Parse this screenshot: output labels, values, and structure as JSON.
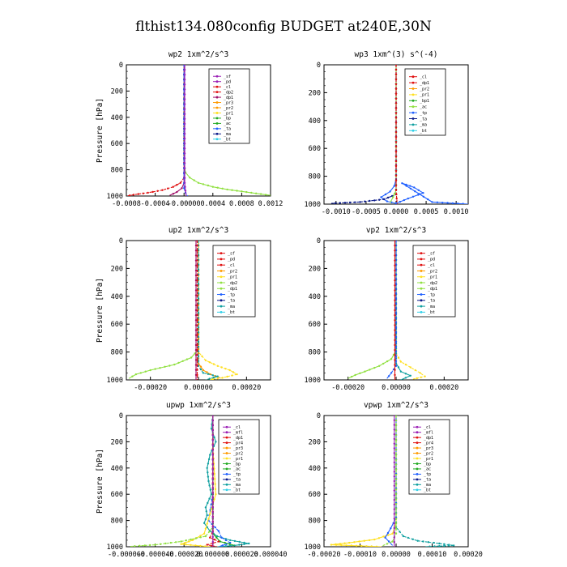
{
  "figure_title": "flthist134.080config  BUDGET at240E,30N",
  "colors": {
    "purple": "#9b1fb5",
    "dark_magenta": "#a0106a",
    "red": "#e01010",
    "orange": "#ff9a00",
    "yellow": "#ffe020",
    "light_green": "#90e040",
    "green": "#22aa22",
    "blue": "#2060ff",
    "navy": "#0a1a8a",
    "teal": "#10a0a0",
    "cyan": "#30d0e8"
  },
  "chart_data": [
    {
      "id": "wp2",
      "type": "line",
      "title": "wp2   1xm^2/s^3",
      "ylabel": "Pressure [hPa]",
      "xlim": [
        -0.0008,
        0.0012
      ],
      "ylim": [
        1000,
        0
      ],
      "xticks": [
        -0.0008,
        -0.0004,
        0,
        0.0004,
        0.0008,
        0.0012
      ],
      "xticklabels": [
        "-0.0008",
        "-0.0004",
        "-0.00000",
        "0.0004",
        "0.0008",
        "0.0012"
      ],
      "yticks": [
        0,
        200,
        400,
        600,
        800,
        1000
      ],
      "legend": [
        {
          "name": "_sf",
          "color": "purple"
        },
        {
          "name": "_pd",
          "color": "purple"
        },
        {
          "name": "_cl",
          "color": "red"
        },
        {
          "name": "_dp2",
          "color": "red"
        },
        {
          "name": "_dp1",
          "color": "dark_magenta"
        },
        {
          "name": "_pr3",
          "color": "orange"
        },
        {
          "name": "_pr2",
          "color": "orange"
        },
        {
          "name": "_pr1",
          "color": "yellow"
        },
        {
          "name": "_bp",
          "color": "green"
        },
        {
          "name": "_ac",
          "color": "green"
        },
        {
          "name": "_ta",
          "color": "blue"
        },
        {
          "name": "_ma",
          "color": "navy"
        },
        {
          "name": "_bt",
          "color": "cyan"
        }
      ],
      "series": [
        {
          "color": "light_green",
          "x": [
            0,
            0,
            2e-05,
            8e-05,
            0.0002,
            0.0004,
            0.0006,
            0.0008,
            0.001,
            0.0012
          ],
          "y": [
            0,
            760,
            820,
            860,
            900,
            930,
            950,
            965,
            980,
            995
          ]
        },
        {
          "color": "red",
          "x": [
            0,
            0,
            -5e-05,
            -0.00015,
            -0.0003,
            -0.0005,
            -0.0007,
            -0.0008
          ],
          "y": [
            0,
            860,
            900,
            930,
            955,
            975,
            990,
            1000
          ]
        },
        {
          "color": "dark_magenta",
          "x": [
            0,
            0,
            -3e-05,
            -0.0001,
            -0.0002
          ],
          "y": [
            0,
            900,
            940,
            970,
            995
          ]
        },
        {
          "color": "blue",
          "x": [
            0,
            0,
            2e-05,
            5e-05
          ],
          "y": [
            0,
            940,
            975,
            1000
          ]
        },
        {
          "color": "purple",
          "x": [
            1e-05,
            1e-05,
            2e-05,
            3e-05
          ],
          "y": [
            0,
            900,
            960,
            1000
          ]
        }
      ]
    },
    {
      "id": "wp3",
      "type": "line",
      "title": "wp3   1xm^(3) s^(-4)",
      "ylabel": "",
      "xlim": [
        -0.0012,
        0.0012
      ],
      "ylim": [
        1000,
        0
      ],
      "xticks": [
        -0.001,
        -0.0005,
        0,
        0.0005,
        0.001
      ],
      "xticklabels": [
        "-0.0010",
        "-0.0005",
        "0.0000",
        "0.0005",
        "0.0010"
      ],
      "yticks": [
        0,
        200,
        400,
        600,
        800,
        1000
      ],
      "legend": [
        {
          "name": "_cl",
          "color": "red"
        },
        {
          "name": "_dp1",
          "color": "red"
        },
        {
          "name": "_pr2",
          "color": "orange"
        },
        {
          "name": "_pr1",
          "color": "yellow"
        },
        {
          "name": "_bp1",
          "color": "green"
        },
        {
          "name": "_ac",
          "color": "light_green"
        },
        {
          "name": "_tp",
          "color": "blue"
        },
        {
          "name": "_ta",
          "color": "navy"
        },
        {
          "name": "_ma",
          "color": "teal"
        },
        {
          "name": "_bt",
          "color": "cyan"
        }
      ],
      "series": [
        {
          "color": "blue",
          "x": [
            0,
            0,
            -3e-05,
            -0.0001,
            -0.00025,
            -0.00015,
            0,
            0.0002,
            0.00045,
            0.0003,
            0.0001,
            0.0006,
            0.0012
          ],
          "y": [
            0,
            820,
            870,
            910,
            950,
            980,
            995,
            960,
            920,
            880,
            850,
            985,
            1000
          ]
        },
        {
          "color": "navy",
          "x": [
            0,
            0,
            -0.0002,
            -0.0006,
            -0.0011
          ],
          "y": [
            0,
            930,
            965,
            985,
            995
          ]
        },
        {
          "color": "light_green",
          "x": [
            0,
            0,
            -5e-05,
            -0.0001
          ],
          "y": [
            0,
            900,
            950,
            990
          ]
        },
        {
          "color": "red",
          "x": [
            0,
            0,
            1e-05,
            2e-05
          ],
          "y": [
            0,
            900,
            960,
            1000
          ]
        }
      ]
    },
    {
      "id": "up2",
      "type": "line",
      "title": "up2   1xm^2/s^3",
      "ylabel": "Pressure [hPa]",
      "xlim": [
        -0.0003,
        0.0003
      ],
      "ylim": [
        1000,
        0
      ],
      "xticks": [
        -0.0002,
        0,
        0.0002
      ],
      "xticklabels": [
        "-0.00020",
        "0.00000",
        "0.00020"
      ],
      "yticks": [
        0,
        200,
        400,
        600,
        800,
        1000
      ],
      "legend": [
        {
          "name": "_sf",
          "color": "red"
        },
        {
          "name": "_pd",
          "color": "red"
        },
        {
          "name": "_cl",
          "color": "red"
        },
        {
          "name": "_pr2",
          "color": "orange"
        },
        {
          "name": "_pr1",
          "color": "yellow"
        },
        {
          "name": "_dp2",
          "color": "light_green"
        },
        {
          "name": "_dp1",
          "color": "light_green"
        },
        {
          "name": "_tp",
          "color": "blue"
        },
        {
          "name": "_ta",
          "color": "navy"
        },
        {
          "name": "_ma",
          "color": "teal"
        },
        {
          "name": "_bt",
          "color": "cyan"
        }
      ],
      "series": [
        {
          "color": "light_green",
          "x": [
            0,
            0,
            -3e-05,
            -0.0001,
            -0.0002,
            -0.00026,
            -0.00029
          ],
          "y": [
            0,
            780,
            840,
            890,
            930,
            960,
            990
          ]
        },
        {
          "color": "yellow",
          "x": [
            0,
            0,
            3e-05,
            8e-05,
            0.00013,
            0.00016,
            0.0001,
            4e-05
          ],
          "y": [
            0,
            800,
            860,
            900,
            930,
            960,
            985,
            1000
          ]
        },
        {
          "color": "orange",
          "x": [
            0,
            0,
            2e-05,
            5e-05,
            9e-05
          ],
          "y": [
            0,
            880,
            930,
            960,
            985
          ]
        },
        {
          "color": "teal",
          "x": [
            0,
            0,
            2e-05,
            8e-05,
            3e-05
          ],
          "y": [
            0,
            900,
            950,
            975,
            1000
          ]
        },
        {
          "color": "dark_magenta",
          "x": [
            -1e-05,
            -1e-05,
            -1e-05
          ],
          "y": [
            0,
            500,
            1000
          ]
        },
        {
          "color": "red",
          "x": [
            -5e-06,
            -5e-06,
            -5e-06
          ],
          "y": [
            0,
            500,
            1000
          ]
        }
      ]
    },
    {
      "id": "vp2",
      "type": "line",
      "title": "vp2   1xm^2/s^3",
      "ylabel": "",
      "xlim": [
        -0.0003,
        0.0003
      ],
      "ylim": [
        1000,
        0
      ],
      "xticks": [
        -0.0002,
        0,
        0.0002
      ],
      "xticklabels": [
        "-0.00020",
        "0.00000",
        "0.00020"
      ],
      "yticks": [
        0,
        200,
        400,
        600,
        800,
        1000
      ],
      "legend": [
        {
          "name": "_sf",
          "color": "red"
        },
        {
          "name": "_pd",
          "color": "red"
        },
        {
          "name": "_cl",
          "color": "red"
        },
        {
          "name": "_pr2",
          "color": "orange"
        },
        {
          "name": "_pr1",
          "color": "yellow"
        },
        {
          "name": "_dp2",
          "color": "light_green"
        },
        {
          "name": "_dp1",
          "color": "light_green"
        },
        {
          "name": "_tp",
          "color": "blue"
        },
        {
          "name": "_ta",
          "color": "navy"
        },
        {
          "name": "_ma",
          "color": "teal"
        },
        {
          "name": "_bt",
          "color": "cyan"
        }
      ],
      "series": [
        {
          "color": "light_green",
          "x": [
            0,
            0,
            -2e-05,
            -7e-05,
            -0.00013,
            -0.00017,
            -0.0002
          ],
          "y": [
            0,
            790,
            850,
            900,
            940,
            965,
            990
          ]
        },
        {
          "color": "yellow",
          "x": [
            0,
            0,
            2e-05,
            6e-05,
            0.0001,
            0.00012,
            7e-05
          ],
          "y": [
            0,
            810,
            870,
            910,
            950,
            975,
            995
          ]
        },
        {
          "color": "teal",
          "x": [
            0,
            0,
            2e-05,
            6e-05,
            2e-05
          ],
          "y": [
            0,
            880,
            940,
            970,
            1000
          ]
        },
        {
          "color": "blue",
          "x": [
            0,
            0,
            -2e-05,
            -4e-05
          ],
          "y": [
            0,
            900,
            950,
            995
          ]
        },
        {
          "color": "red",
          "x": [
            -5e-06,
            -5e-06,
            -5e-06
          ],
          "y": [
            0,
            500,
            1000
          ]
        }
      ]
    },
    {
      "id": "upwp",
      "type": "line",
      "title": "upwp   1xm^2/s^3",
      "ylabel": "Pressure [hPa]",
      "xlim": [
        -6e-05,
        4e-05
      ],
      "ylim": [
        1000,
        0
      ],
      "xticks": [
        -6e-05,
        -4e-05,
        -2e-05,
        0,
        2e-05,
        4e-05
      ],
      "xticklabels": [
        "-0.000060",
        "-0.000040",
        "-0.000020",
        "0.000000",
        "0.000020",
        "0.000040"
      ],
      "yticks": [
        0,
        200,
        400,
        600,
        800,
        1000
      ],
      "legend": [
        {
          "name": "_cl",
          "color": "purple"
        },
        {
          "name": "_mfl",
          "color": "purple"
        },
        {
          "name": "_dp1",
          "color": "red"
        },
        {
          "name": "_pr4",
          "color": "red"
        },
        {
          "name": "_pr3",
          "color": "orange"
        },
        {
          "name": "_pr2",
          "color": "orange"
        },
        {
          "name": "_pr1",
          "color": "yellow"
        },
        {
          "name": "_bp",
          "color": "green"
        },
        {
          "name": "_ac",
          "color": "green"
        },
        {
          "name": "_tp",
          "color": "blue"
        },
        {
          "name": "_ta",
          "color": "navy"
        },
        {
          "name": "_ma",
          "color": "teal"
        },
        {
          "name": "_bt",
          "color": "cyan"
        }
      ],
      "series": [
        {
          "color": "teal",
          "x": [
            0,
            -1e-06,
            2e-06,
            -2e-06,
            -4e-06,
            -3e-06,
            -1e-06,
            -5e-06,
            -4e-06,
            -6e-06,
            -2e-06,
            3e-06,
            1.2e-05,
            2.5e-05,
            1.5e-05,
            3e-06
          ],
          "y": [
            0,
            100,
            200,
            300,
            400,
            500,
            600,
            700,
            760,
            820,
            880,
            920,
            950,
            975,
            990,
            1000
          ]
        },
        {
          "color": "blue",
          "x": [
            0,
            0,
            -3e-06,
            4e-06,
            6e-06,
            1.2e-05,
            4e-06
          ],
          "y": [
            0,
            600,
            800,
            880,
            930,
            970,
            1000
          ]
        },
        {
          "color": "yellow",
          "x": [
            0,
            0,
            2e-06,
            -6e-06,
            -1.4e-05,
            -2.2e-05,
            -2e-06
          ],
          "y": [
            0,
            250,
            600,
            900,
            950,
            980,
            1000
          ]
        },
        {
          "color": "light_green",
          "x": [
            0,
            0,
            -5e-06,
            -2.2e-05,
            -4e-05,
            -5.8e-05
          ],
          "y": [
            0,
            850,
            920,
            960,
            985,
            998
          ]
        },
        {
          "color": "green",
          "x": [
            0,
            0,
            5e-06,
            1.5e-05
          ],
          "y": [
            0,
            900,
            960,
            990
          ]
        },
        {
          "color": "red",
          "x": [
            0,
            0,
            -2e-06,
            4e-06,
            -4e-06,
            3e-06
          ],
          "y": [
            0,
            880,
            930,
            960,
            985,
            1000
          ]
        },
        {
          "color": "purple",
          "x": [
            0,
            0,
            0,
            0
          ],
          "y": [
            0,
            300,
            700,
            1000
          ]
        }
      ]
    },
    {
      "id": "vpwp",
      "type": "line",
      "title": "vpwp   1xm^2/s^3",
      "ylabel": "",
      "xlim": [
        -0.0002,
        0.0002
      ],
      "ylim": [
        1000,
        0
      ],
      "xticks": [
        -0.0002,
        -0.0001,
        0,
        0.0001,
        0.0002
      ],
      "xticklabels": [
        "-0.00020",
        "-0.00010",
        "0.00000",
        "0.00010",
        "0.00020"
      ],
      "yticks": [
        0,
        200,
        400,
        600,
        800,
        1000
      ],
      "legend": [
        {
          "name": "_cl",
          "color": "purple"
        },
        {
          "name": "_mfl",
          "color": "purple"
        },
        {
          "name": "_dp1",
          "color": "red"
        },
        {
          "name": "_pr4",
          "color": "red"
        },
        {
          "name": "_pr3",
          "color": "orange"
        },
        {
          "name": "_pr2",
          "color": "orange"
        },
        {
          "name": "_pr1",
          "color": "yellow"
        },
        {
          "name": "_bp",
          "color": "green"
        },
        {
          "name": "_ac",
          "color": "green"
        },
        {
          "name": "_tp",
          "color": "blue"
        },
        {
          "name": "_ta",
          "color": "navy"
        },
        {
          "name": "_ma",
          "color": "teal"
        },
        {
          "name": "_bt",
          "color": "cyan"
        }
      ],
      "series": [
        {
          "color": "yellow",
          "x": [
            0,
            0,
            -1e-05,
            -6e-05,
            -0.00013,
            -0.00018,
            -4e-05
          ],
          "y": [
            0,
            820,
            900,
            945,
            970,
            985,
            1000
          ]
        },
        {
          "color": "teal",
          "x": [
            0,
            0,
            2e-05,
            6e-05,
            0.00012,
            0.00016,
            8e-05
          ],
          "y": [
            0,
            850,
            920,
            955,
            975,
            990,
            1000
          ]
        },
        {
          "color": "blue",
          "x": [
            0,
            0,
            -1.5e-05,
            -3e-05,
            -1e-05
          ],
          "y": [
            0,
            780,
            860,
            930,
            990
          ]
        },
        {
          "color": "light_green",
          "x": [
            0,
            0,
            -1e-05,
            -4e-05
          ],
          "y": [
            0,
            900,
            960,
            995
          ]
        },
        {
          "color": "purple",
          "x": [
            -5e-06,
            -5e-06,
            -5e-06
          ],
          "y": [
            0,
            500,
            1000
          ]
        }
      ]
    }
  ]
}
